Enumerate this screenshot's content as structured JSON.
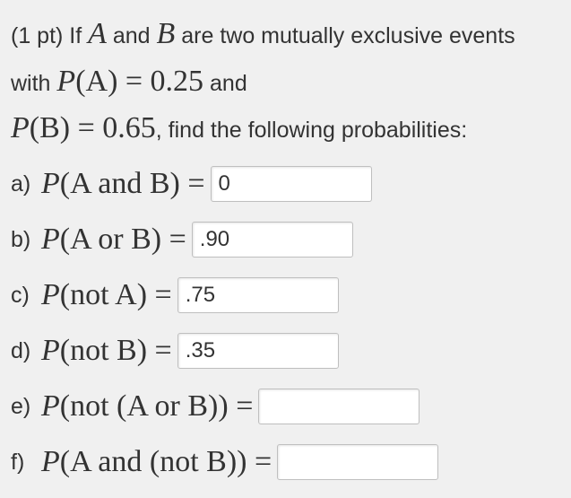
{
  "problem": {
    "points_prefix": "(1 pt) ",
    "intro_before_A": "If ",
    "var_A": "A",
    "intro_between": " and ",
    "var_B": "B",
    "intro_tail": " are two mutually exclusive events with ",
    "PA_expr_prefix": "P",
    "PA_expr_content": "(A) = 0.25",
    "between_and": " and ",
    "PB_expr_prefix": "P",
    "PB_expr_content": "(B) = 0.65",
    "after_PB": ", find the following probabilities:"
  },
  "parts": {
    "a": {
      "label": "a)",
      "prefix": "P",
      "content": "(A and B) =",
      "value": "0"
    },
    "b": {
      "label": "b)",
      "prefix": "P",
      "content": "(A or B) =",
      "value": ".90"
    },
    "c": {
      "label": "c)",
      "prefix": "P",
      "content": "(not A) =",
      "value": ".75"
    },
    "d": {
      "label": "d)",
      "prefix": "P",
      "content": "(not B) =",
      "value": ".35"
    },
    "e": {
      "label": "e)",
      "prefix": "P",
      "content": "(not (A or B)) =",
      "value": ""
    },
    "f": {
      "label": "f)",
      "prefix": "P",
      "content": "(A and (not B)) =",
      "value": ""
    }
  },
  "style": {
    "background": "#f0f0f0",
    "text_color": "#333333",
    "input_border": "#bfbfbf",
    "input_bg": "#ffffff",
    "body_fontsize": 25,
    "math_fontsize": 34,
    "input_width": 180,
    "input_height": 40
  }
}
